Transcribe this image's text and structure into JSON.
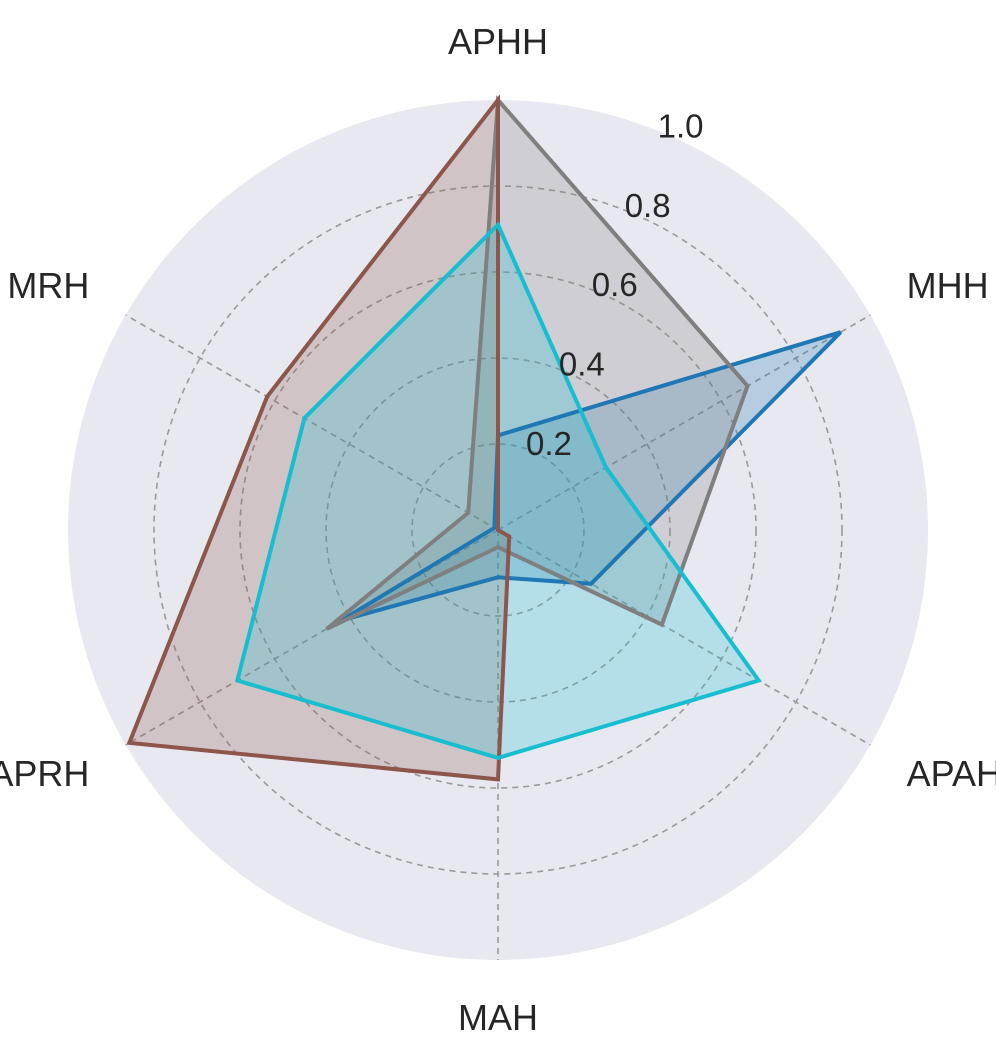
{
  "chart_data": {
    "type": "radar",
    "title": "",
    "axes": [
      "APHH",
      "MHH",
      "APAH",
      "MAH",
      "APRH",
      "MRH"
    ],
    "rlim": [
      0,
      1.0
    ],
    "rticks": [
      0.2,
      0.4,
      0.6,
      0.8,
      1.0
    ],
    "rtick_labels": [
      "0.2",
      "0.4",
      "0.6",
      "0.8",
      "1.0"
    ],
    "grid": true,
    "legend": "none",
    "background_color": "#e8e8f0",
    "series": [
      {
        "color": "#1f77b4",
        "values": [
          0.22,
          0.92,
          0.25,
          0.11,
          0.42,
          0.01
        ]
      },
      {
        "color": "#7f7f7f",
        "values": [
          1.0,
          0.67,
          0.44,
          0.04,
          0.46,
          0.08
        ]
      },
      {
        "color": "#8c564b",
        "values": [
          1.0,
          0.0,
          0.03,
          0.58,
          0.99,
          0.62
        ]
      },
      {
        "color": "#17becf",
        "values": [
          0.71,
          0.29,
          0.7,
          0.53,
          0.7,
          0.52
        ]
      }
    ]
  }
}
